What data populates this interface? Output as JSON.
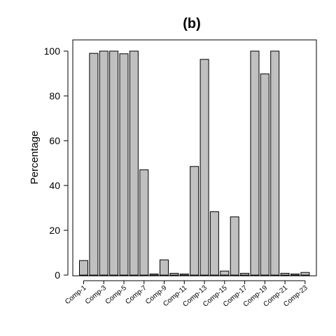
{
  "chart_data": {
    "type": "bar",
    "title": "(b)",
    "ylabel": "Percentage",
    "xlabel": "",
    "ylim": [
      0,
      100
    ],
    "yticks": [
      0,
      20,
      40,
      60,
      80,
      100
    ],
    "categories": [
      "Comp-1",
      "Comp-2",
      "Comp-3",
      "Comp-4",
      "Comp-5",
      "Comp-6",
      "Comp-7",
      "Comp-8",
      "Comp-9",
      "Comp-10",
      "Comp-11",
      "Comp-12",
      "Comp-13",
      "Comp-14",
      "Comp-15",
      "Comp-16",
      "Comp-17",
      "Comp-18",
      "Comp-19",
      "Comp-20",
      "Comp-21",
      "Comp-22",
      "Comp-23"
    ],
    "tick_labels_shown": [
      "Comp-1",
      "Comp-3",
      "Comp-5",
      "Comp-7",
      "Comp-9",
      "Comp-11",
      "Comp-13",
      "Comp-15",
      "Comp-17",
      "Comp-19",
      "Comp-21",
      "Comp-23"
    ],
    "values": [
      6.5,
      99,
      100,
      100,
      98.8,
      100,
      47,
      0.5,
      6.8,
      0.8,
      0.5,
      48.5,
      96.3,
      28.3,
      1.8,
      26,
      0.8,
      100,
      89.8,
      100,
      0.8,
      0.5,
      1.2
    ],
    "bar_color": "#c0c0c0",
    "grid": false
  }
}
